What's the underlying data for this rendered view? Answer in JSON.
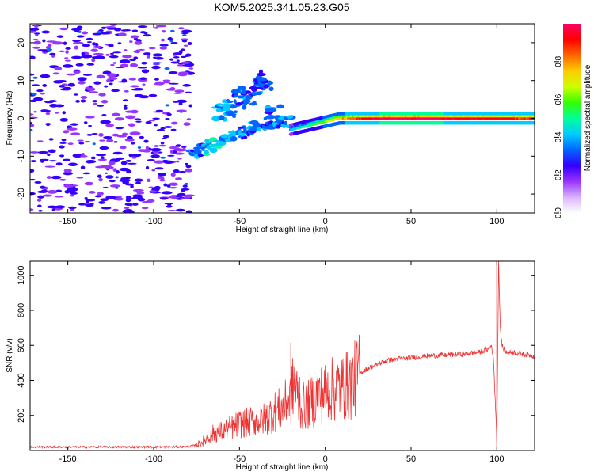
{
  "title": "KOM5.2025.341.05.23.G05",
  "chart_data": [
    {
      "type": "heatmap",
      "xlabel": "Height of straight line (km)",
      "ylabel": "Frequency (Hz)",
      "xlim": [
        -172,
        122
      ],
      "ylim": [
        -25,
        25
      ],
      "xticks": [
        -150,
        -100,
        -50,
        0,
        50,
        100
      ],
      "yticks": [
        -20,
        -10,
        0,
        10,
        20
      ],
      "colorbar": {
        "label": "Normalized spectral amplitude",
        "range": [
          0,
          1
        ],
        "ticks": [
          0.0,
          0.2,
          0.4,
          0.6,
          0.8
        ],
        "colors": [
          "#ffffff",
          "#d9b3ff",
          "#9933ff",
          "#3300ff",
          "#0066ff",
          "#00ccff",
          "#00ff99",
          "#33ff00",
          "#ccff00",
          "#ffcc00",
          "#ff6600",
          "#ff0000",
          "#ff0066"
        ]
      },
      "features": {
        "main_line": {
          "x_start": -20,
          "x_end": 122,
          "freq": [
            -3,
            -2,
            -1,
            0,
            0,
            0,
            0,
            0,
            0,
            0,
            0,
            0,
            0,
            0,
            0,
            0
          ],
          "amplitude": [
            0.35,
            0.45,
            0.55,
            0.7,
            0.8,
            0.9,
            0.95,
            0.95,
            0.95,
            0.95,
            0.9,
            0.9,
            0.9,
            0.9,
            0.85,
            0.85
          ]
        },
        "diagonal_branch": {
          "x": [
            -78,
            -70,
            -60,
            -50,
            -40,
            -30,
            -20
          ],
          "freq": [
            -10,
            -8,
            -6,
            -4,
            -2,
            -1,
            -1
          ],
          "amplitude": [
            0.3,
            0.4,
            0.35,
            0.3,
            0.3,
            0.3,
            0.3
          ]
        },
        "upper_cluster": {
          "x": [
            -60,
            -55,
            -50,
            -45,
            -40,
            -35,
            -30
          ],
          "freq": [
            2,
            3,
            5,
            6,
            9,
            10,
            1
          ],
          "amplitude": [
            0.35,
            0.3,
            0.3,
            0.25,
            0.3,
            0.25,
            0.3
          ]
        },
        "noise_region": {
          "x_range": [
            -172,
            -78
          ],
          "amplitude": 0.1
        }
      }
    },
    {
      "type": "line",
      "xlabel": "Height of straight line (km)",
      "ylabel": "SNR (v/v)",
      "xlim": [
        -172,
        122
      ],
      "ylim": [
        0,
        1080
      ],
      "xticks": [
        -150,
        -100,
        -50,
        0,
        50,
        100
      ],
      "yticks": [
        200,
        400,
        600,
        800,
        1000
      ],
      "series": [
        {
          "name": "SNR",
          "color": "#ee3333",
          "x": [
            -172,
            -160,
            -150,
            -140,
            -130,
            -120,
            -110,
            -100,
            -90,
            -80,
            -75,
            -70,
            -65,
            -60,
            -55,
            -50,
            -45,
            -40,
            -35,
            -30,
            -25,
            -20,
            -18,
            -15,
            -10,
            -5,
            0,
            5,
            10,
            15,
            20,
            25,
            30,
            35,
            40,
            50,
            60,
            70,
            80,
            90,
            95,
            97,
            98,
            99,
            100,
            101,
            102,
            103,
            105,
            110,
            115,
            122
          ],
          "y": [
            20,
            20,
            20,
            20,
            20,
            20,
            20,
            20,
            20,
            22,
            30,
            60,
            100,
            110,
            130,
            150,
            160,
            170,
            180,
            220,
            240,
            300,
            400,
            250,
            260,
            310,
            330,
            350,
            360,
            380,
            440,
            470,
            490,
            510,
            520,
            530,
            540,
            545,
            550,
            560,
            580,
            600,
            520,
            300,
            60,
            1080,
            700,
            600,
            560,
            560,
            550,
            540
          ],
          "spikes": [
            {
              "x": -20,
              "y": 615
            },
            {
              "x": -15,
              "y": 420
            },
            {
              "x": 10,
              "y": 460
            },
            {
              "x": 100,
              "y": 1080
            },
            {
              "x": 100,
              "y": 5
            }
          ]
        }
      ]
    }
  ]
}
